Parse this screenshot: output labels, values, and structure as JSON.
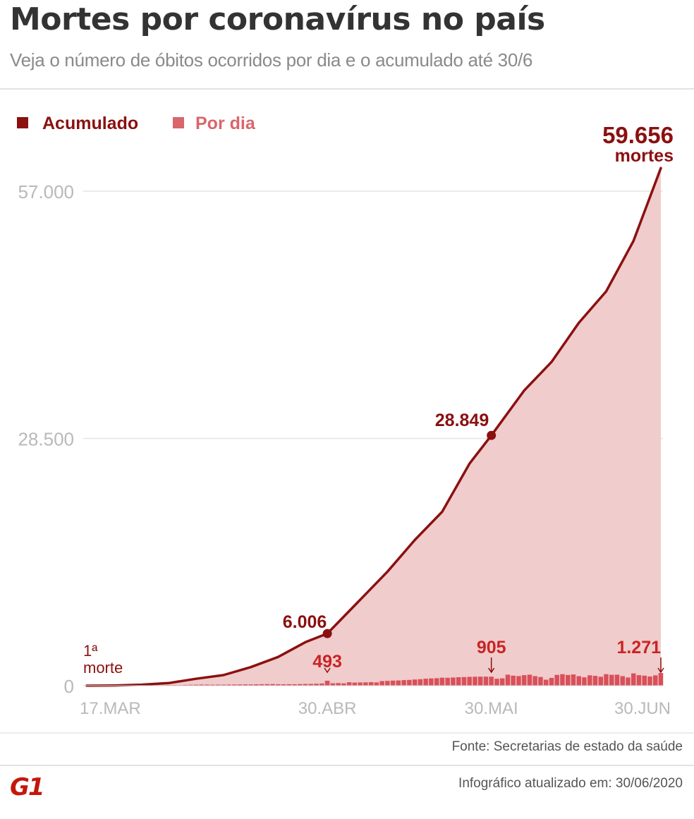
{
  "header": {
    "title": "Mortes por coronavírus no país",
    "subtitle": "Veja o número de óbitos ocorridos por dia e o acumulado até 30/6"
  },
  "footer": {
    "source": "Fonte: Secretarias de estado da saúde",
    "updated": "Infográfico atualizado em: 30/06/2020",
    "logo": "G1"
  },
  "colors": {
    "line": "#8b1010",
    "area": "#f0cccc",
    "bars": "#d9505a",
    "daily_label": "#c92424",
    "grid": "#e5e5e5",
    "axis_text": "#b9b9b9"
  },
  "chart_data": {
    "type": "area",
    "legend": [
      {
        "label": "Acumulado",
        "color": "#8b1010"
      },
      {
        "label": "Por dia",
        "color": "#d9666c"
      }
    ],
    "legend_position": "top-left",
    "x_tick_labels": [
      "17.MAR",
      "30.ABR",
      "30.MAI",
      "30.JUN"
    ],
    "x_ticks_day_index": [
      0,
      44,
      74,
      105
    ],
    "y_tick_labels": [
      "57.000",
      "28.500",
      "0"
    ],
    "y_ticks": [
      57000,
      28500,
      0
    ],
    "ylim": [
      0,
      57000
    ],
    "grid": true,
    "series": [
      {
        "name": "Acumulado",
        "day_index": [
          0,
          5,
          10,
          15,
          20,
          25,
          30,
          35,
          40,
          44,
          50,
          55,
          60,
          65,
          70,
          74,
          80,
          85,
          90,
          95,
          100,
          105
        ],
        "values": [
          1,
          25,
          114,
          299,
          800,
          1223,
          2141,
          3313,
          5017,
          6006,
          9897,
          13149,
          16792,
          20047,
          25598,
          28849,
          34021,
          37312,
          41828,
          45456,
          51271,
          59656
        ]
      },
      {
        "name": "Por dia",
        "values": [
          1,
          0,
          0,
          1,
          4,
          6,
          7,
          9,
          12,
          18,
          22,
          25,
          33,
          46,
          49,
          62,
          66,
          60,
          80,
          92,
          100,
          114,
          112,
          99,
          107,
          109,
          115,
          121,
          130,
          133,
          130,
          144,
          150,
          155,
          160,
          151,
          138,
          145,
          150,
          160,
          167,
          180,
          195,
          220,
          493,
          240,
          260,
          230,
          345,
          310,
          322,
          330,
          350,
          327,
          460,
          480,
          510,
          520,
          560,
          580,
          620,
          650,
          700,
          730,
          750,
          800,
          790,
          820,
          850,
          860,
          880,
          895,
          905,
          905,
          905,
          690,
          735,
          1100,
          1000,
          960,
          1050,
          1100,
          960,
          870,
          600,
          780,
          1080,
          1150,
          1070,
          1120,
          950,
          830,
          1040,
          980,
          900,
          1150,
          1090,
          1100,
          950,
          820,
          1230,
          1050,
          1000,
          920,
          1030,
          1271
        ]
      }
    ],
    "annotations": [
      {
        "text": "1ª",
        "text2": "morte",
        "series": "Acumulado",
        "day_index": 0
      },
      {
        "text": "6.006",
        "series": "Acumulado",
        "day_index": 44,
        "value": 6006
      },
      {
        "text": "28.849",
        "series": "Acumulado",
        "day_index": 74,
        "value": 28849
      },
      {
        "text": "59.656",
        "text2": "mortes",
        "series": "Acumulado",
        "day_index": 105,
        "value": 59656
      },
      {
        "text": "493",
        "series": "Por dia",
        "day_index": 44,
        "value": 493
      },
      {
        "text": "905",
        "series": "Por dia",
        "day_index": 74,
        "value": 905
      },
      {
        "text": "1.271",
        "series": "Por dia",
        "day_index": 105,
        "value": 1271
      }
    ]
  }
}
